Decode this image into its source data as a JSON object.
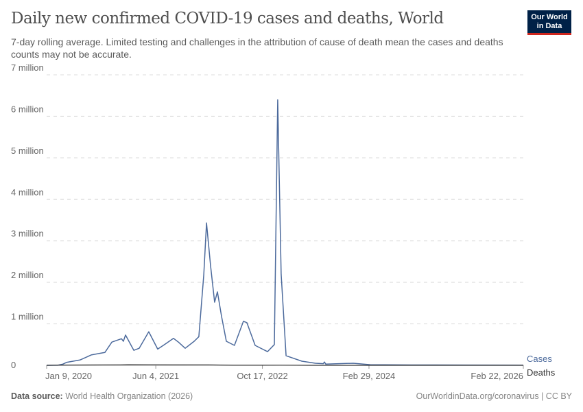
{
  "title": "Daily new confirmed COVID-19 cases and deaths, World",
  "subtitle": "7-day rolling average. Limited testing and challenges in the attribution of cause of death mean the cases and deaths counts may not be accurate.",
  "logo": "Our World in Data",
  "footer": {
    "source_label": "Data source:",
    "source": "World Health Organization (2026)",
    "link": "OurWorldinData.org/coronavirus | CC BY"
  },
  "colors": {
    "cases": "#4c6a9c",
    "deaths": "#333333",
    "grid": "#dddddd"
  },
  "chart_data": {
    "type": "line",
    "title": "Daily new confirmed COVID-19 cases and deaths, World",
    "ylim": [
      0,
      7000000
    ],
    "xlim": [
      "2020-01-09",
      "2026-02-22"
    ],
    "y_ticks": [
      {
        "v": 0,
        "label": "0"
      },
      {
        "v": 1000000,
        "label": "1 million"
      },
      {
        "v": 2000000,
        "label": "2 million"
      },
      {
        "v": 3000000,
        "label": "3 million"
      },
      {
        "v": 4000000,
        "label": "4 million"
      },
      {
        "v": 5000000,
        "label": "5 million"
      },
      {
        "v": 6000000,
        "label": "6 million"
      },
      {
        "v": 7000000,
        "label": "7 million"
      }
    ],
    "x_ticks": [
      {
        "d": "2020-01-09",
        "label": "Jan 9, 2020"
      },
      {
        "d": "2021-06-04",
        "label": "Jun 4, 2021"
      },
      {
        "d": "2022-10-17",
        "label": "Oct 17, 2022"
      },
      {
        "d": "2024-02-29",
        "label": "Feb 29, 2024"
      },
      {
        "d": "2026-02-22",
        "label": "Feb 22, 2026"
      }
    ],
    "grid": true,
    "legend": "right",
    "series": [
      {
        "name": "Cases",
        "points": [
          [
            "2020-01-09",
            0
          ],
          [
            "2020-03-01",
            2000
          ],
          [
            "2020-03-26",
            30000
          ],
          [
            "2020-04-11",
            70000
          ],
          [
            "2020-06-15",
            130000
          ],
          [
            "2020-08-05",
            250000
          ],
          [
            "2020-10-08",
            310000
          ],
          [
            "2020-11-10",
            560000
          ],
          [
            "2020-12-25",
            640000
          ],
          [
            "2021-01-03",
            580000
          ],
          [
            "2021-01-13",
            730000
          ],
          [
            "2021-02-21",
            360000
          ],
          [
            "2021-03-18",
            410000
          ],
          [
            "2021-05-02",
            810000
          ],
          [
            "2021-06-13",
            390000
          ],
          [
            "2021-07-15",
            500000
          ],
          [
            "2021-08-26",
            650000
          ],
          [
            "2021-09-18",
            560000
          ],
          [
            "2021-10-20",
            410000
          ],
          [
            "2021-12-01",
            580000
          ],
          [
            "2021-12-23",
            690000
          ],
          [
            "2022-01-15",
            2180000
          ],
          [
            "2022-01-28",
            3430000
          ],
          [
            "2022-02-16",
            2400000
          ],
          [
            "2022-03-07",
            1520000
          ],
          [
            "2022-03-20",
            1770000
          ],
          [
            "2022-04-08",
            1190000
          ],
          [
            "2022-05-01",
            580000
          ],
          [
            "2022-06-08",
            480000
          ],
          [
            "2022-07-20",
            1060000
          ],
          [
            "2022-08-05",
            1030000
          ],
          [
            "2022-09-13",
            480000
          ],
          [
            "2022-11-10",
            330000
          ],
          [
            "2022-12-12",
            500000
          ],
          [
            "2022-12-28",
            6400000
          ],
          [
            "2023-01-13",
            2200000
          ],
          [
            "2023-02-05",
            230000
          ],
          [
            "2023-04-20",
            100000
          ],
          [
            "2023-06-23",
            50000
          ],
          [
            "2023-07-30",
            40000
          ],
          [
            "2023-08-04",
            80000
          ],
          [
            "2023-08-10",
            30000
          ],
          [
            "2023-12-17",
            50000
          ],
          [
            "2024-03-06",
            15000
          ],
          [
            "2024-09-15",
            8000
          ],
          [
            "2025-05-31",
            6000
          ],
          [
            "2026-02-22",
            3000
          ]
        ]
      },
      {
        "name": "Deaths",
        "points": [
          [
            "2020-01-09",
            0
          ],
          [
            "2020-04-15",
            7000
          ],
          [
            "2020-12-20",
            11000
          ],
          [
            "2021-01-25",
            14500
          ],
          [
            "2021-05-01",
            13000
          ],
          [
            "2021-08-25",
            10000
          ],
          [
            "2022-02-05",
            11000
          ],
          [
            "2022-06-01",
            2000
          ],
          [
            "2023-01-10",
            2500
          ],
          [
            "2023-06-01",
            500
          ],
          [
            "2026-02-22",
            100
          ]
        ]
      }
    ]
  }
}
